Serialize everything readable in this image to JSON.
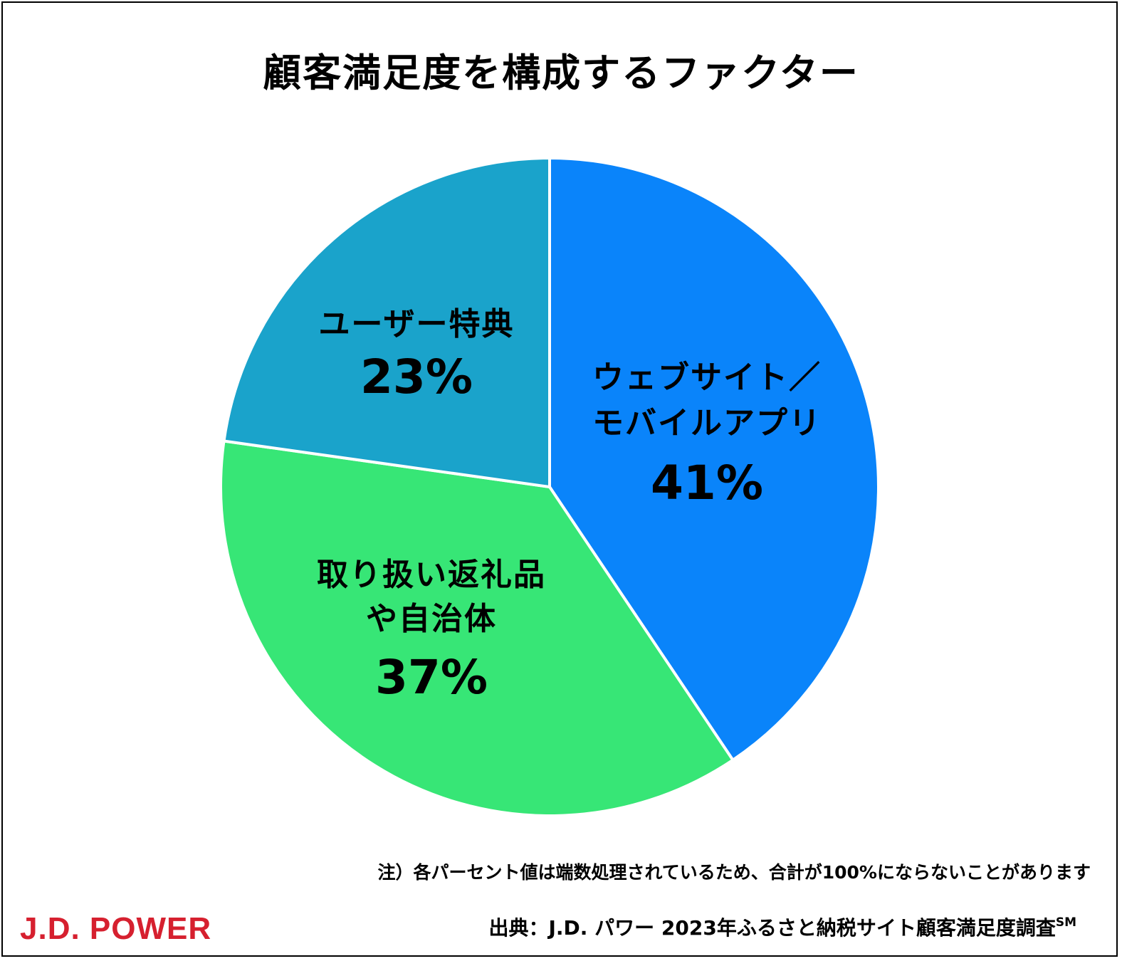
{
  "chart_data": {
    "type": "pie",
    "title": "顧客満足度を構成するファクター",
    "slices": [
      {
        "label_lines": [
          "ウェブサイト／",
          "モバイルアプリ"
        ],
        "value_label": "41%",
        "value": 41,
        "color": "#0a84fa"
      },
      {
        "label_lines": [
          "取り扱い返礼品",
          "や自治体"
        ],
        "value_label": "37%",
        "value": 37,
        "color": "#37e676"
      },
      {
        "label_lines": [
          "ユーザー特典"
        ],
        "value_label": "23%",
        "value": 23,
        "color": "#1aa3cb"
      }
    ]
  },
  "footer": {
    "note": "注）各パーセント値は端数処理されているため、合計が100%にならないことがあります",
    "source": "出典：J.D. パワー 2023年ふるさと納税サイト顧客満足度調査",
    "source_mark": "SM",
    "logo": "J.D. POWER"
  }
}
